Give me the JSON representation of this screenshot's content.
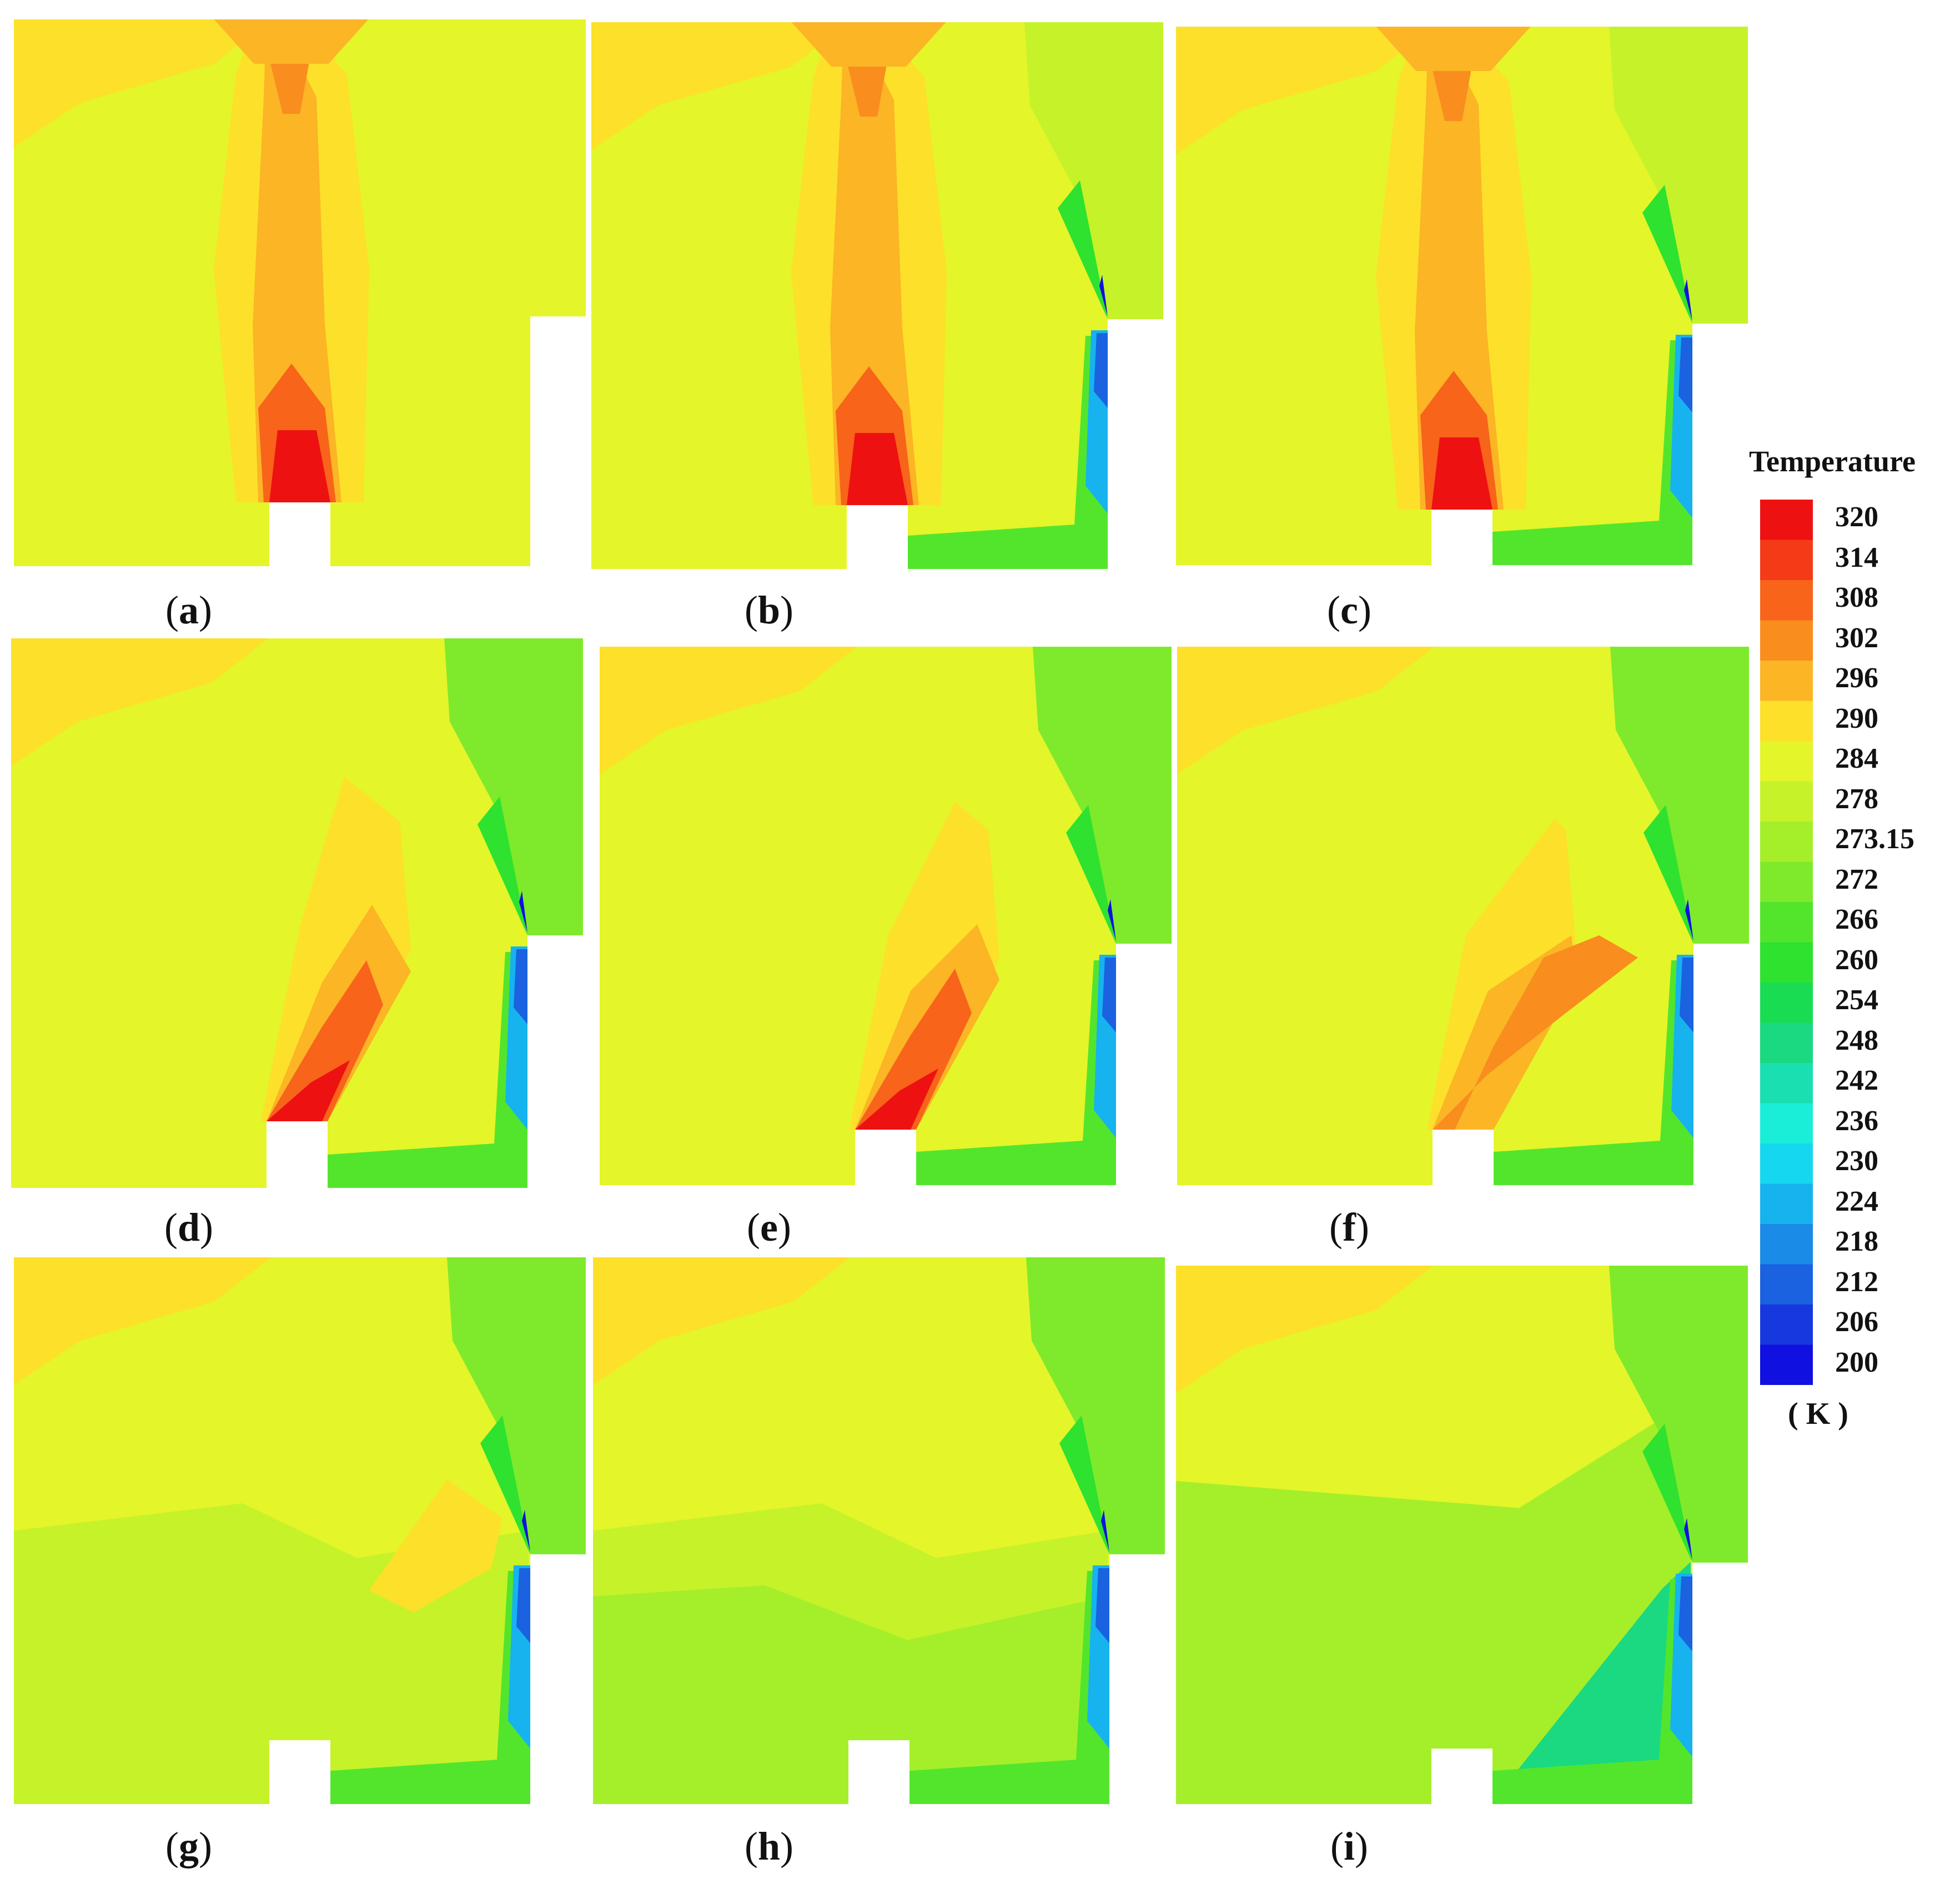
{
  "panels": [
    {
      "label": "a",
      "stage": 0
    },
    {
      "label": "b",
      "stage": 1
    },
    {
      "label": "c",
      "stage": 2
    },
    {
      "label": "d",
      "stage": 3
    },
    {
      "label": "e",
      "stage": 4
    },
    {
      "label": "f",
      "stage": 5
    },
    {
      "label": "g",
      "stage": 6
    },
    {
      "label": "h",
      "stage": 7
    },
    {
      "label": "i",
      "stage": 8
    }
  ],
  "legend": {
    "title": "Temperature",
    "unit": "( K )",
    "ticks": [
      "320",
      "314",
      "308",
      "302",
      "296",
      "290",
      "284",
      "278",
      "273.15",
      "272",
      "266",
      "260",
      "254",
      "248",
      "242",
      "236",
      "230",
      "224",
      "218",
      "212",
      "206",
      "200"
    ],
    "colors": [
      "#ee1111",
      "#f43a16",
      "#f7641a",
      "#f98d1e",
      "#fbb525",
      "#fde02a",
      "#e4f52a",
      "#c6f229",
      "#a5ef2a",
      "#7fea2b",
      "#53e52c",
      "#2ee22f",
      "#1adc53",
      "#1ad980",
      "#1adfb0",
      "#1aedd8",
      "#15d7f0",
      "#16b3ef",
      "#1a8be6",
      "#1a62e0",
      "#1738de",
      "#1010e0"
    ]
  }
}
